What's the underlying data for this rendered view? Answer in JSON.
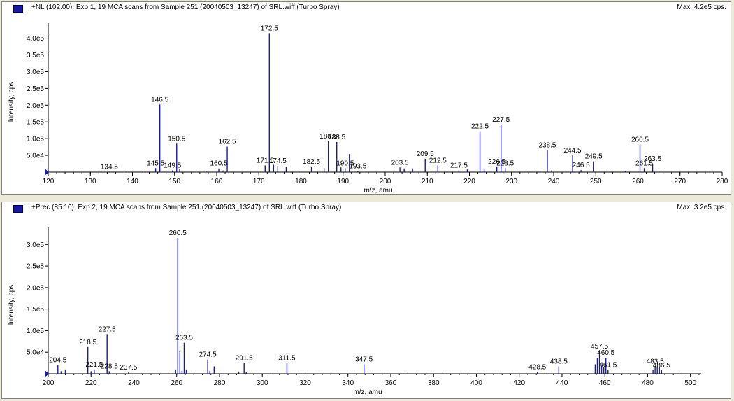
{
  "panels": [
    {
      "title": "+NL (102.00): Exp 1, 19 MCA scans from Sample 251 (20040503_13247) of SRL.wiff (Turbo Spray)",
      "max_label": "Max. 4.2e5 cps."
    },
    {
      "title": "+Prec (85.10): Exp 2, 19 MCA scans from Sample 251 (20040503_13247) of SRL.wiff (Turbo Spray)",
      "max_label": "Max. 3.2e5 cps."
    }
  ],
  "colors": {
    "peak": "#1a1aa0",
    "axis": "#000000",
    "marker": "#1a1aa0"
  },
  "chart_data": [
    {
      "type": "bar",
      "title": "+NL (102.00): Exp 1, 19 MCA scans from Sample 251 (20040503_13247) of SRL.wiff (Turbo Spray)",
      "xlabel": "m/z, amu",
      "ylabel": "Intensity, cps",
      "xlim": [
        120,
        280
      ],
      "ylim": [
        0,
        420000
      ],
      "x_ticks": [
        120,
        130,
        140,
        150,
        160,
        170,
        180,
        190,
        200,
        210,
        220,
        230,
        240,
        250,
        260,
        270,
        280
      ],
      "y_ticks": [
        {
          "value": 50000,
          "label": "5.0e4"
        },
        {
          "value": 100000,
          "label": "1.0e5"
        },
        {
          "value": 150000,
          "label": "1.5e5"
        },
        {
          "value": 200000,
          "label": "2.0e5"
        },
        {
          "value": 250000,
          "label": "2.5e5"
        },
        {
          "value": 300000,
          "label": "3.0e5"
        },
        {
          "value": 350000,
          "label": "3.5e5"
        },
        {
          "value": 400000,
          "label": "4.0e5"
        }
      ],
      "peaks": [
        {
          "mz": 134.5,
          "y": 1500,
          "label": "134.5"
        },
        {
          "mz": 145.5,
          "y": 12000,
          "label": "145.5"
        },
        {
          "mz": 146.5,
          "y": 202000,
          "label": "146.5"
        },
        {
          "mz": 149.5,
          "y": 5000,
          "label": "149.5"
        },
        {
          "mz": 150.5,
          "y": 85000,
          "label": "150.5"
        },
        {
          "mz": 151.2,
          "y": 10000
        },
        {
          "mz": 157.5,
          "y": 4000
        },
        {
          "mz": 160.5,
          "y": 11000,
          "label": "160.5"
        },
        {
          "mz": 161.5,
          "y": 5000
        },
        {
          "mz": 162.5,
          "y": 76000,
          "label": "162.5"
        },
        {
          "mz": 171.5,
          "y": 20000,
          "label": "171.5"
        },
        {
          "mz": 172.5,
          "y": 415000,
          "label": "172.5"
        },
        {
          "mz": 173.5,
          "y": 22000
        },
        {
          "mz": 174.5,
          "y": 19000,
          "label": "174.5"
        },
        {
          "mz": 176.5,
          "y": 15000
        },
        {
          "mz": 182.5,
          "y": 17000,
          "label": "182.5"
        },
        {
          "mz": 185.5,
          "y": 12000
        },
        {
          "mz": 186.5,
          "y": 92000,
          "label": "186.5"
        },
        {
          "mz": 188.5,
          "y": 90000,
          "label": "188.5"
        },
        {
          "mz": 189.5,
          "y": 14000
        },
        {
          "mz": 190.5,
          "y": 12000,
          "label": "190.5"
        },
        {
          "mz": 191.5,
          "y": 54000
        },
        {
          "mz": 193.5,
          "y": 3000,
          "label": "193.5"
        },
        {
          "mz": 203.5,
          "y": 14000,
          "label": "203.5"
        },
        {
          "mz": 204.5,
          "y": 11000
        },
        {
          "mz": 206.5,
          "y": 11000
        },
        {
          "mz": 209.5,
          "y": 40000,
          "label": "209.5"
        },
        {
          "mz": 212.5,
          "y": 20000,
          "label": "212.5"
        },
        {
          "mz": 217.5,
          "y": 5000,
          "label": "217.5"
        },
        {
          "mz": 219.5,
          "y": 8000
        },
        {
          "mz": 222.5,
          "y": 122000,
          "label": "222.5"
        },
        {
          "mz": 223.5,
          "y": 9000
        },
        {
          "mz": 226.5,
          "y": 17000,
          "label": "226.5"
        },
        {
          "mz": 227.5,
          "y": 142000,
          "label": "227.5"
        },
        {
          "mz": 228.5,
          "y": 12000,
          "label": "228.5"
        },
        {
          "mz": 238.5,
          "y": 66000,
          "label": "238.5"
        },
        {
          "mz": 239.5,
          "y": 5000
        },
        {
          "mz": 244.5,
          "y": 50000,
          "label": "244.5"
        },
        {
          "mz": 246.5,
          "y": 6000,
          "label": "246.5"
        },
        {
          "mz": 249.5,
          "y": 32000,
          "label": "249.5"
        },
        {
          "mz": 257.0,
          "y": 3000
        },
        {
          "mz": 260.5,
          "y": 83000,
          "label": "260.5"
        },
        {
          "mz": 261.5,
          "y": 12000,
          "label": "261.5"
        },
        {
          "mz": 263.5,
          "y": 25000,
          "label": "263.5"
        }
      ]
    },
    {
      "type": "bar",
      "title": "+Prec (85.10): Exp 2, 19 MCA scans from Sample 251 (20040503_13247) of SRL.wiff (Turbo Spray)",
      "xlabel": "m/z, amu",
      "ylabel": "Intensity, cps",
      "xlim": [
        200,
        505
      ],
      "ylim": [
        0,
        320000
      ],
      "x_ticks": [
        200,
        220,
        240,
        260,
        280,
        300,
        320,
        340,
        360,
        380,
        400,
        420,
        440,
        460,
        480,
        500
      ],
      "y_ticks": [
        {
          "value": 50000,
          "label": "5.0e4"
        },
        {
          "value": 100000,
          "label": "1.0e5"
        },
        {
          "value": 150000,
          "label": "1.5e5"
        },
        {
          "value": 200000,
          "label": "2.0e5"
        },
        {
          "value": 250000,
          "label": "2.5e5"
        },
        {
          "value": 300000,
          "label": "3.0e5"
        }
      ],
      "peaks": [
        {
          "mz": 204.5,
          "y": 20000,
          "label": "204.5"
        },
        {
          "mz": 206.0,
          "y": 6000
        },
        {
          "mz": 208.0,
          "y": 10000
        },
        {
          "mz": 218.5,
          "y": 62000,
          "label": "218.5"
        },
        {
          "mz": 220.0,
          "y": 6000
        },
        {
          "mz": 221.5,
          "y": 10000,
          "label": "221.5"
        },
        {
          "mz": 227.5,
          "y": 92000,
          "label": "227.5"
        },
        {
          "mz": 228.5,
          "y": 6000,
          "label": "228.5"
        },
        {
          "mz": 237.5,
          "y": 3000,
          "label": "237.5"
        },
        {
          "mz": 259.5,
          "y": 10000
        },
        {
          "mz": 260.5,
          "y": 315000,
          "label": "260.5"
        },
        {
          "mz": 261.5,
          "y": 52000
        },
        {
          "mz": 262.5,
          "y": 7000
        },
        {
          "mz": 263.5,
          "y": 72000,
          "label": "263.5"
        },
        {
          "mz": 264.5,
          "y": 10000
        },
        {
          "mz": 274.5,
          "y": 33000,
          "label": "274.5"
        },
        {
          "mz": 275.5,
          "y": 7000
        },
        {
          "mz": 277.5,
          "y": 17000
        },
        {
          "mz": 289.0,
          "y": 5000
        },
        {
          "mz": 291.5,
          "y": 25000,
          "label": "291.5"
        },
        {
          "mz": 292.5,
          "y": 4000
        },
        {
          "mz": 311.5,
          "y": 25000,
          "label": "311.5"
        },
        {
          "mz": 347.5,
          "y": 22000,
          "label": "347.5"
        },
        {
          "mz": 428.5,
          "y": 4000,
          "label": "428.5"
        },
        {
          "mz": 438.5,
          "y": 17000,
          "label": "438.5"
        },
        {
          "mz": 455.5,
          "y": 22000
        },
        {
          "mz": 456.5,
          "y": 36000
        },
        {
          "mz": 457.5,
          "y": 52000,
          "label": "457.5"
        },
        {
          "mz": 458.5,
          "y": 18000
        },
        {
          "mz": 459.5,
          "y": 16000
        },
        {
          "mz": 460.5,
          "y": 37000,
          "label": "460.5"
        },
        {
          "mz": 461.5,
          "y": 9000,
          "label": "461.5"
        },
        {
          "mz": 482.5,
          "y": 10000
        },
        {
          "mz": 483.5,
          "y": 17000,
          "label": "483.5"
        },
        {
          "mz": 484.5,
          "y": 15000
        },
        {
          "mz": 485.5,
          "y": 16000
        },
        {
          "mz": 486.5,
          "y": 8000,
          "label": "486.5"
        }
      ]
    }
  ]
}
